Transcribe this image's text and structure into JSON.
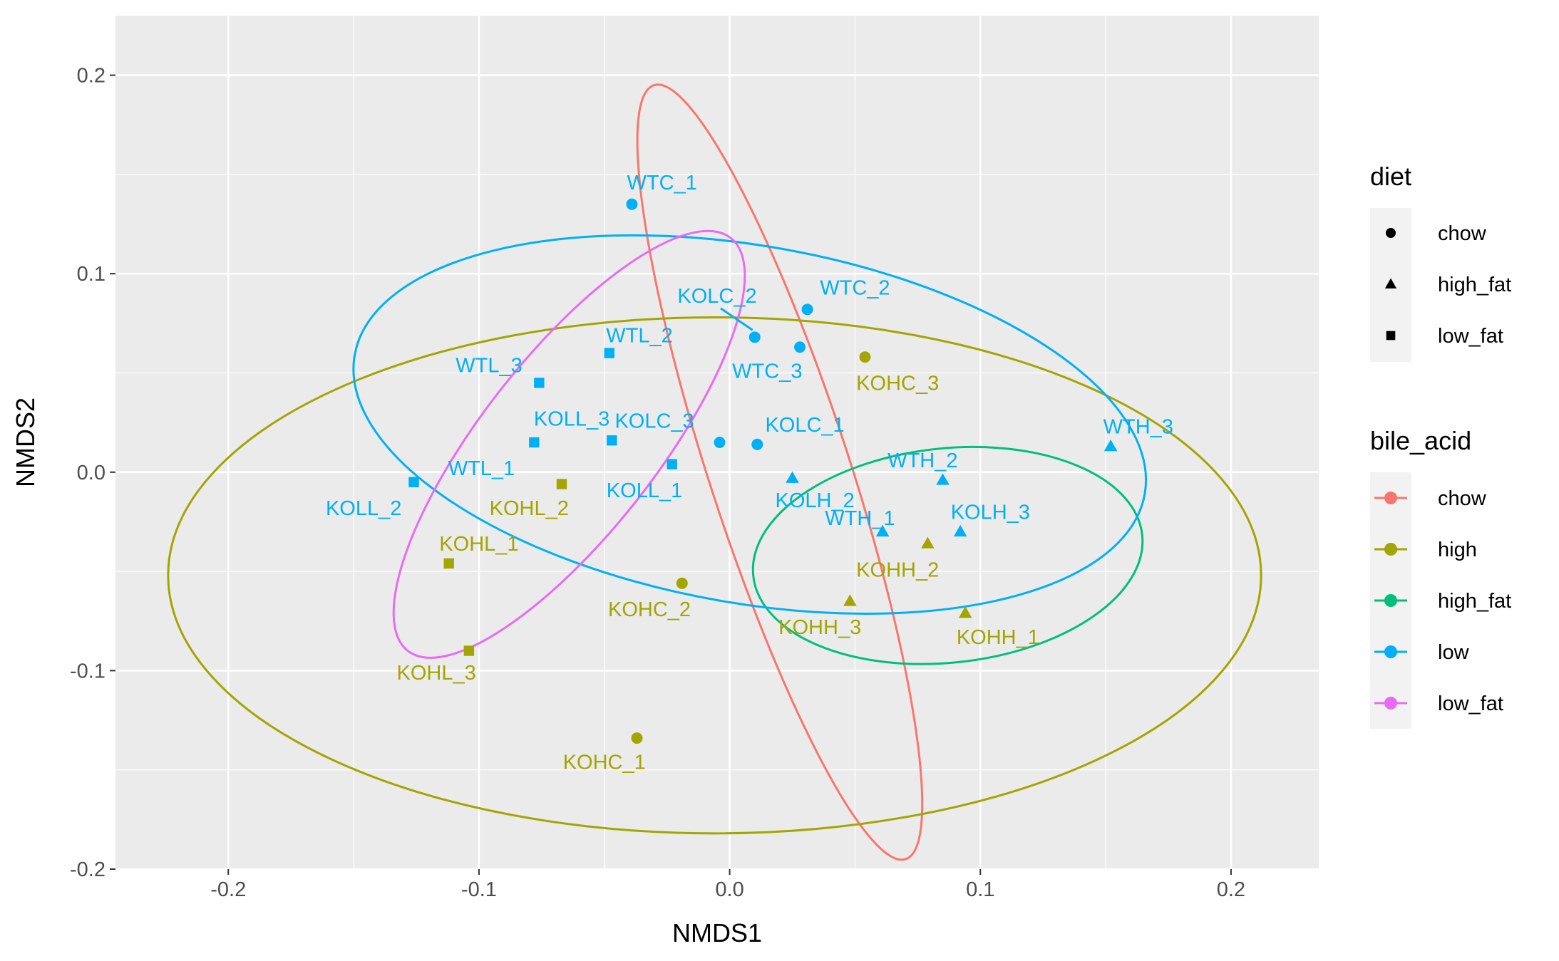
{
  "chart_data": {
    "type": "scatter",
    "xlabel": "NMDS1",
    "ylabel": "NMDS2",
    "xlim": [
      -0.245,
      0.235
    ],
    "ylim": [
      -0.2,
      0.23
    ],
    "x_ticks": [
      -0.2,
      -0.1,
      0.0,
      0.1,
      0.2
    ],
    "x_tick_labels": [
      "-0.2",
      "-0.1",
      "0.0",
      "0.1",
      "0.2"
    ],
    "y_ticks": [
      -0.2,
      -0.1,
      0.0,
      0.1,
      0.2
    ],
    "y_tick_labels": [
      "-0.2",
      "-0.1",
      "0.0",
      "0.1",
      "0.2"
    ],
    "grid": true,
    "legend_position": "right",
    "colors": {
      "chow": "#F8766D",
      "high": "#A3A500",
      "high_fat": "#00BF7D",
      "low": "#00B0F6",
      "low_fat": "#E76BF3"
    },
    "legends": [
      {
        "title": "diet",
        "entries": [
          {
            "label": "chow",
            "shape": "circle"
          },
          {
            "label": "high_fat",
            "shape": "triangle"
          },
          {
            "label": "low_fat",
            "shape": "square"
          }
        ]
      },
      {
        "title": "bile_acid",
        "entries": [
          {
            "label": "chow",
            "color": "#F8766D"
          },
          {
            "label": "high",
            "color": "#A3A500"
          },
          {
            "label": "high_fat",
            "color": "#00BF7D"
          },
          {
            "label": "low",
            "color": "#00B0F6"
          },
          {
            "label": "low_fat",
            "color": "#E76BF3"
          }
        ]
      }
    ],
    "points": [
      {
        "label": "WTC_1",
        "x": -0.039,
        "y": 0.135,
        "diet": "chow",
        "bile_acid": "low",
        "lx": -0.027,
        "ly": 0.146
      },
      {
        "label": "WTC_2",
        "x": 0.031,
        "y": 0.082,
        "diet": "chow",
        "bile_acid": "low",
        "lx": 0.05,
        "ly": 0.093
      },
      {
        "label": "WTC_3",
        "x": 0.028,
        "y": 0.063,
        "diet": "chow",
        "bile_acid": "low",
        "lx": 0.015,
        "ly": 0.051
      },
      {
        "label": "KOLC_2",
        "x": 0.01,
        "y": 0.068,
        "diet": "chow",
        "bile_acid": "low",
        "lx": -0.005,
        "ly": 0.089
      },
      {
        "label": "KOLC_3",
        "x": -0.004,
        "y": 0.015,
        "diet": "chow",
        "bile_acid": "low",
        "lx": -0.03,
        "ly": 0.026
      },
      {
        "label": "KOLC_1",
        "x": 0.011,
        "y": 0.014,
        "diet": "chow",
        "bile_acid": "low",
        "lx": 0.03,
        "ly": 0.024
      },
      {
        "label": "WTL_2",
        "x": -0.048,
        "y": 0.06,
        "diet": "low_fat",
        "bile_acid": "low",
        "lx": -0.036,
        "ly": 0.069
      },
      {
        "label": "WTL_3",
        "x": -0.076,
        "y": 0.045,
        "diet": "low_fat",
        "bile_acid": "low",
        "lx": -0.096,
        "ly": 0.054
      },
      {
        "label": "KOLL_3",
        "x": -0.078,
        "y": 0.015,
        "diet": "low_fat",
        "bile_acid": "low",
        "lx": -0.063,
        "ly": 0.027
      },
      {
        "label": "WTL_1",
        "x": -0.047,
        "y": 0.016,
        "diet": "low_fat",
        "bile_acid": "low",
        "lx": -0.099,
        "ly": 0.002
      },
      {
        "label": "KOLL_1",
        "x": -0.023,
        "y": 0.004,
        "diet": "low_fat",
        "bile_acid": "low",
        "lx": -0.034,
        "ly": -0.009
      },
      {
        "label": "KOLL_2",
        "x": -0.126,
        "y": -0.005,
        "diet": "low_fat",
        "bile_acid": "low",
        "lx": -0.146,
        "ly": -0.018
      },
      {
        "label": "WTH_3",
        "x": 0.152,
        "y": 0.013,
        "diet": "high_fat",
        "bile_acid": "low",
        "lx": 0.163,
        "ly": 0.023
      },
      {
        "label": "WTH_2",
        "x": 0.085,
        "y": -0.004,
        "diet": "high_fat",
        "bile_acid": "low",
        "lx": 0.077,
        "ly": 0.006
      },
      {
        "label": "KOLH_2",
        "x": 0.025,
        "y": -0.003,
        "diet": "high_fat",
        "bile_acid": "low",
        "lx": 0.034,
        "ly": -0.014
      },
      {
        "label": "WTH_1",
        "x": 0.061,
        "y": -0.03,
        "diet": "high_fat",
        "bile_acid": "low",
        "lx": 0.052,
        "ly": -0.023
      },
      {
        "label": "KOLH_3",
        "x": 0.092,
        "y": -0.03,
        "diet": "high_fat",
        "bile_acid": "low",
        "lx": 0.104,
        "ly": -0.02
      },
      {
        "label": "KOHC_3",
        "x": 0.054,
        "y": 0.058,
        "diet": "chow",
        "bile_acid": "high",
        "lx": 0.067,
        "ly": 0.045
      },
      {
        "label": "KOHC_2",
        "x": -0.019,
        "y": -0.056,
        "diet": "chow",
        "bile_acid": "high",
        "lx": -0.032,
        "ly": -0.069
      },
      {
        "label": "KOHC_1",
        "x": -0.037,
        "y": -0.134,
        "diet": "chow",
        "bile_acid": "high",
        "lx": -0.05,
        "ly": -0.146
      },
      {
        "label": "KOHL_2",
        "x": -0.067,
        "y": -0.006,
        "diet": "low_fat",
        "bile_acid": "high",
        "lx": -0.08,
        "ly": -0.018
      },
      {
        "label": "KOHL_1",
        "x": -0.112,
        "y": -0.046,
        "diet": "low_fat",
        "bile_acid": "high",
        "lx": -0.1,
        "ly": -0.036
      },
      {
        "label": "KOHL_3",
        "x": -0.104,
        "y": -0.09,
        "diet": "low_fat",
        "bile_acid": "high",
        "lx": -0.117,
        "ly": -0.101
      },
      {
        "label": "KOHH_2",
        "x": 0.079,
        "y": -0.036,
        "diet": "high_fat",
        "bile_acid": "high",
        "lx": 0.067,
        "ly": -0.049
      },
      {
        "label": "KOHH_3",
        "x": 0.048,
        "y": -0.065,
        "diet": "high_fat",
        "bile_acid": "high",
        "lx": 0.036,
        "ly": -0.078
      },
      {
        "label": "KOHH_1",
        "x": 0.094,
        "y": -0.071,
        "diet": "high_fat",
        "bile_acid": "high",
        "lx": 0.107,
        "ly": -0.083
      }
    ],
    "ellipses": [
      {
        "group": "chow",
        "center": [
          0.02,
          0.0
        ],
        "semi_axes": [
          0.028,
          0.205
        ],
        "angle_deg": 18
      },
      {
        "group": "high",
        "center": [
          -0.006,
          -0.052
        ],
        "semi_axes": [
          0.218,
          0.13
        ],
        "angle_deg": 0
      },
      {
        "group": "high_fat",
        "center": [
          0.087,
          -0.042
        ],
        "semi_axes": [
          0.078,
          0.054
        ],
        "angle_deg": 6
      },
      {
        "group": "low",
        "center": [
          0.008,
          0.024
        ],
        "semi_axes": [
          0.16,
          0.09
        ],
        "angle_deg": -10
      },
      {
        "group": "low_fat",
        "center": [
          -0.064,
          0.014
        ],
        "semi_axes": [
          0.035,
          0.132
        ],
        "angle_deg": -38
      }
    ]
  }
}
